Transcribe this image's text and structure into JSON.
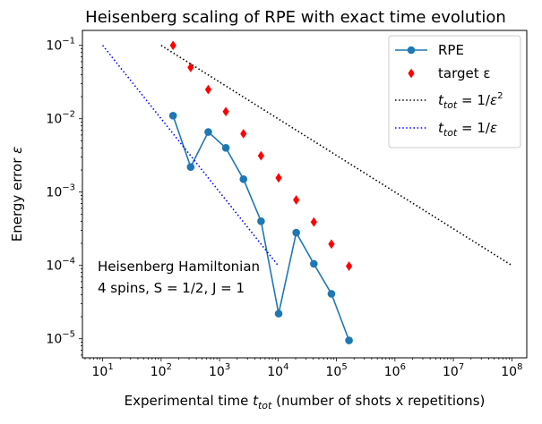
{
  "chart_data": {
    "type": "line",
    "title": "Heisenberg scaling of RPE with exact time evolution",
    "xlabel": {
      "main": "Experimental time ",
      "var": "t",
      "sub": "tot",
      "rest": " (number of shots x repetitions)"
    },
    "ylabel": {
      "main": "Energy error ",
      "var": "ε"
    },
    "xscale": "log",
    "yscale": "log",
    "xlim": [
      4.5,
      180000000
    ],
    "ylim": [
      5.5e-06,
      0.16
    ],
    "xticks": [
      {
        "value": 10,
        "mant": "10",
        "exp": "1"
      },
      {
        "value": 100,
        "mant": "10",
        "exp": "2"
      },
      {
        "value": 1000,
        "mant": "10",
        "exp": "3"
      },
      {
        "value": 10000,
        "mant": "10",
        "exp": "4"
      },
      {
        "value": 100000,
        "mant": "10",
        "exp": "5"
      },
      {
        "value": 1000000,
        "mant": "10",
        "exp": "6"
      },
      {
        "value": 10000000,
        "mant": "10",
        "exp": "7"
      },
      {
        "value": 100000000,
        "mant": "10",
        "exp": "8"
      }
    ],
    "yticks": [
      {
        "value": 1e-05,
        "mant": "10",
        "exp": "−5"
      },
      {
        "value": 0.0001,
        "mant": "10",
        "exp": "−4"
      },
      {
        "value": 0.001,
        "mant": "10",
        "exp": "−3"
      },
      {
        "value": 0.01,
        "mant": "10",
        "exp": "−2"
      },
      {
        "value": 0.1,
        "mant": "10",
        "exp": "−1"
      }
    ],
    "series": [
      {
        "name": "RPE",
        "style": "line-marker",
        "color": "#1f77b4",
        "x": [
          160,
          320,
          640,
          1280,
          2560,
          5120,
          10240,
          20480,
          40960,
          81920,
          163840
        ],
        "y": [
          0.011,
          0.0022,
          0.0066,
          0.004,
          0.0015,
          0.0004,
          2.2e-05,
          0.00028,
          0.000105,
          4.1e-05,
          9.5e-06
        ]
      },
      {
        "name": "target ε",
        "style": "diamond",
        "color": "#ff0000",
        "x": [
          160,
          320,
          640,
          1280,
          2560,
          5120,
          10240,
          20480,
          40960,
          81920,
          163840
        ],
        "y": [
          0.1,
          0.05,
          0.025,
          0.0125,
          0.00625,
          0.003125,
          0.0015625,
          0.00078125,
          0.000390625,
          0.0001953125,
          9.765625e-05
        ]
      },
      {
        "name": "t_tot = 1/ε²",
        "style": "dotted",
        "color": "#000000",
        "x": [
          100,
          100000000
        ],
        "y": [
          0.1,
          0.0001
        ]
      },
      {
        "name": "t_tot = 1/ε",
        "style": "dotted",
        "color": "#0000ff",
        "x": [
          10,
          10000
        ],
        "y": [
          0.1,
          0.0001
        ]
      }
    ],
    "legend": {
      "placement": "top-right",
      "entries": [
        {
          "text": "RPE",
          "type": "text"
        },
        {
          "text": "target ε",
          "type": "text"
        },
        {
          "lhs": "t",
          "sub": "tot",
          "eq": " = 1/",
          "var": "ε",
          "sup": "2",
          "type": "math"
        },
        {
          "lhs": "t",
          "sub": "tot",
          "eq": " = 1/",
          "var": "ε",
          "sup": "",
          "type": "math"
        }
      ]
    },
    "annotation": {
      "line1": "Heisenberg Hamiltonian",
      "line2": "4 spins, S = 1/2, J = 1"
    },
    "grid": false
  }
}
